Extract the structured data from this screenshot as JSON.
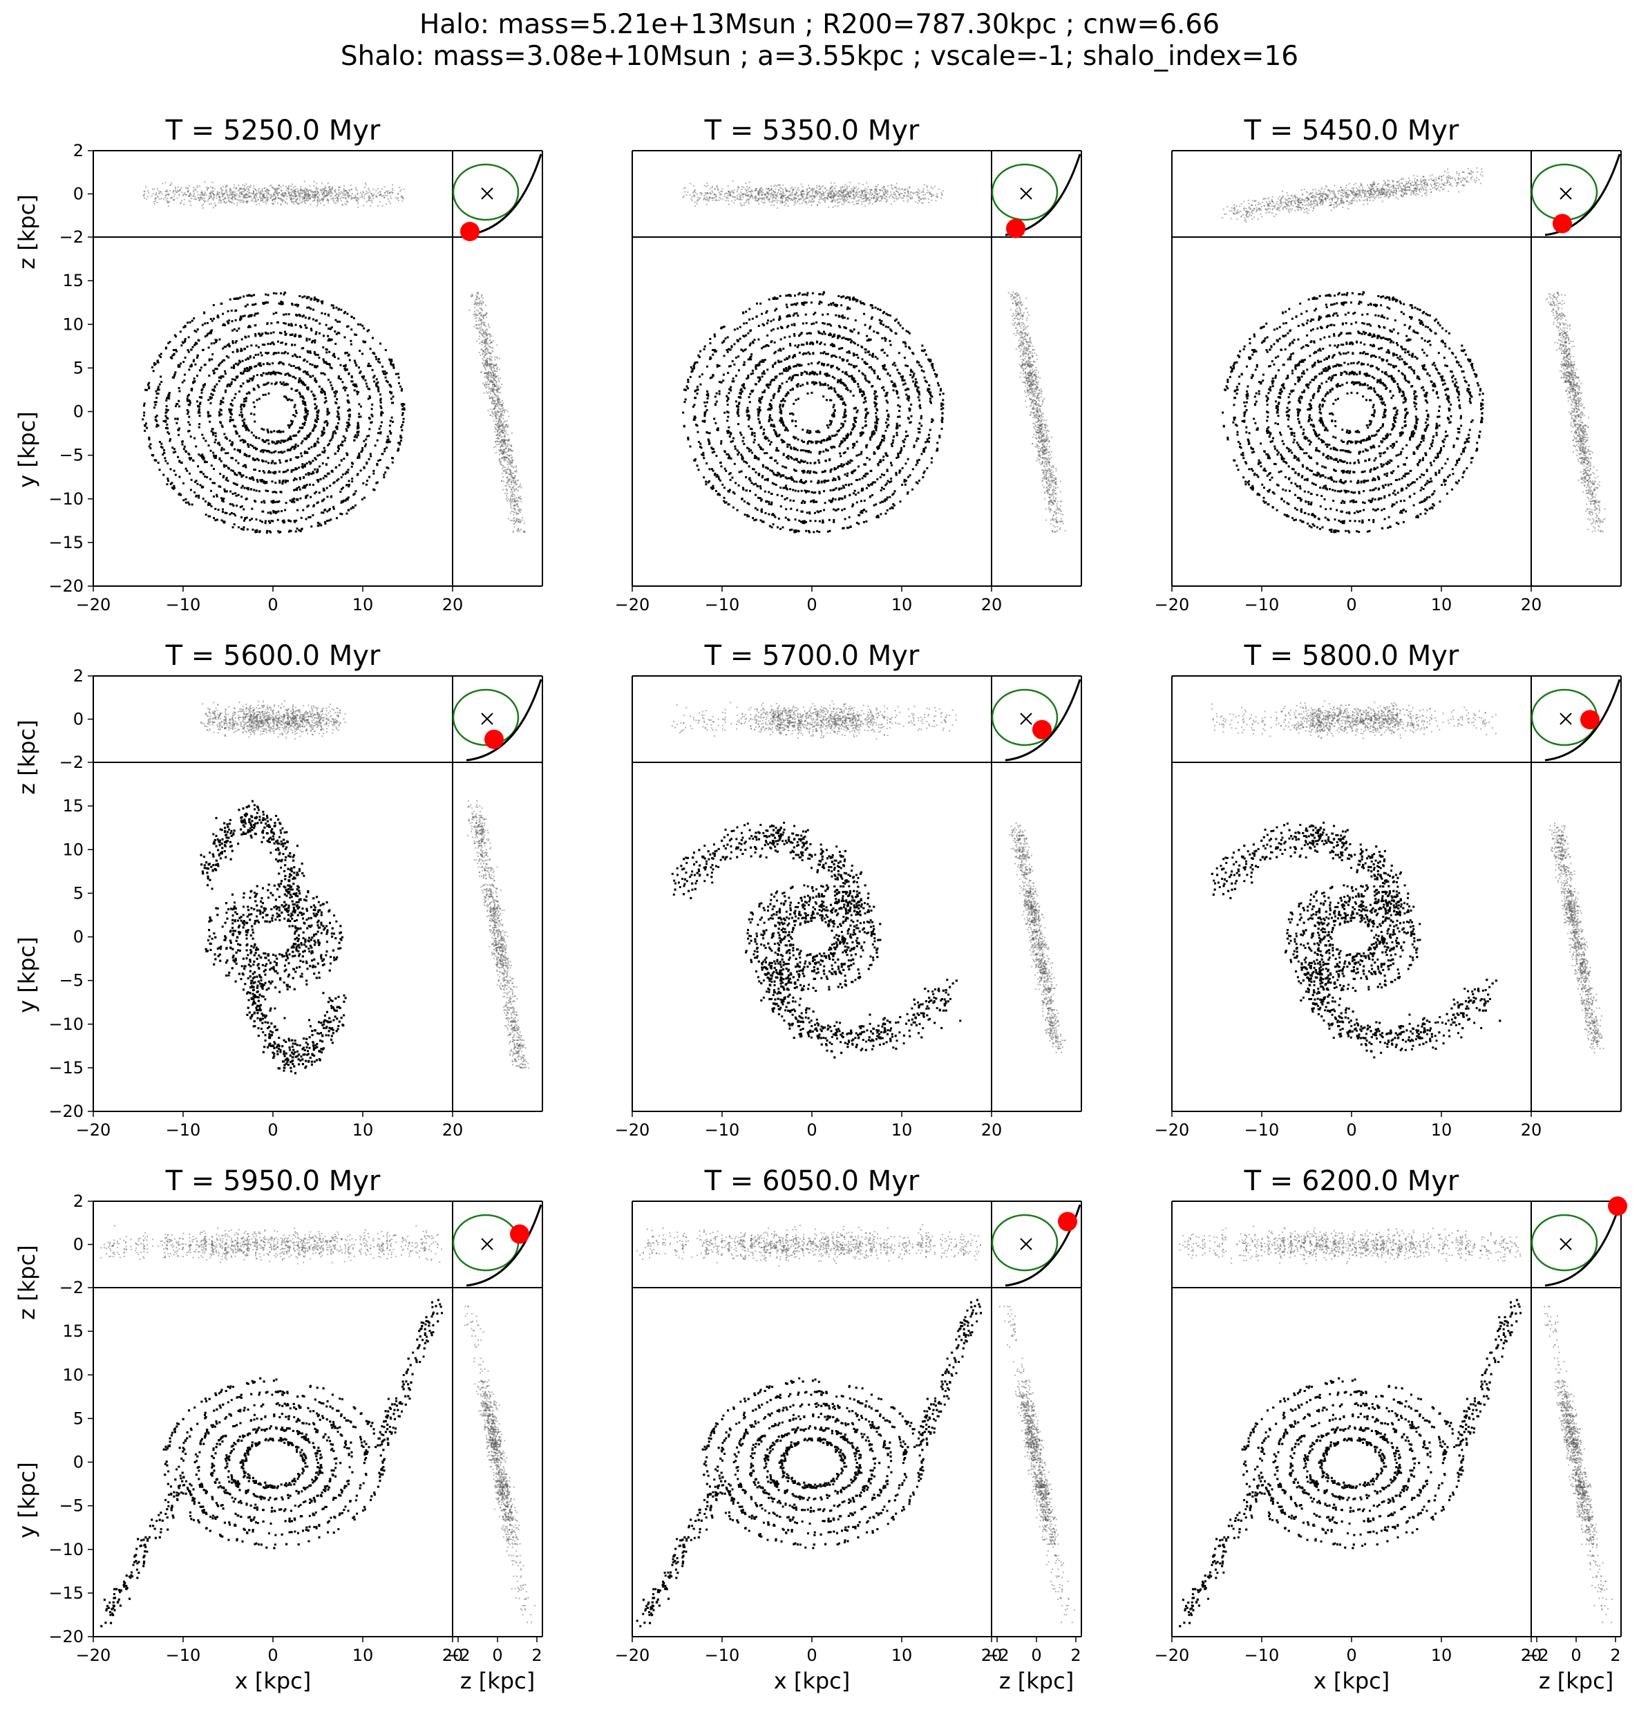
{
  "figure": {
    "suptitle_line1": "Halo:  mass=5.21e+13Msun ; R200=787.30kpc ; cnw=6.66",
    "suptitle_line2": "Shalo: mass=3.08e+10Msun ; a=3.55kpc ; vscale=-1; shalo_index=16",
    "colors": {
      "particles": "#000000",
      "side_particles": "#555555",
      "halo_circle": "#1a7a1a",
      "subhalo_marker": "#ff0000",
      "orbit": "#000000"
    }
  },
  "chart_data": {
    "type": "scatter",
    "axes": {
      "xy_xlabel": "x [kpc]",
      "xy_ylabel": "y [kpc]",
      "xz_ylabel": "z [kpc]",
      "yz_xlabel": "z [kpc]",
      "xy_xlim": [
        -20,
        30
      ],
      "xy_ylim": [
        -20,
        20
      ],
      "xz_ylim": [
        -2,
        2
      ],
      "x_ticks": [
        "−20",
        "−10",
        "0",
        "10",
        "20"
      ],
      "y_ticks": [
        "−20",
        "−15",
        "−10",
        "−5",
        "0",
        "5",
        "10",
        "15"
      ],
      "z_ticks": [
        "2",
        "0",
        "−2"
      ],
      "zside_ticks": [
        "−2",
        "0",
        "2"
      ]
    },
    "panels": [
      {
        "title": "T = 5250.0 Myr",
        "time_myr": 5250.0,
        "state": "disk",
        "orbit_phase": 0.0,
        "marker_angle_deg": -100
      },
      {
        "title": "T = 5350.0 Myr",
        "time_myr": 5350.0,
        "state": "disk",
        "orbit_phase": 0.1,
        "marker_angle_deg": -95
      },
      {
        "title": "T = 5450.0 Myr",
        "time_myr": 5450.0,
        "state": "disk-tilted",
        "orbit_phase": 0.2,
        "marker_angle_deg": -60
      },
      {
        "title": "T = 5600.0 Myr",
        "time_myr": 5600.0,
        "state": "tidal-tails-start",
        "orbit_phase": 0.35,
        "marker_angle_deg": -35
      },
      {
        "title": "T = 5700.0 Myr",
        "time_myr": 5700.0,
        "state": "tidal-tails",
        "orbit_phase": 0.48,
        "marker_angle_deg": -5
      },
      {
        "title": "T = 5800.0 Myr",
        "time_myr": 5800.0,
        "state": "tidal-tails",
        "orbit_phase": 0.6,
        "marker_angle_deg": 10
      },
      {
        "title": "T = 5950.0 Myr",
        "time_myr": 5950.0,
        "state": "ring",
        "orbit_phase": 0.72,
        "marker_angle_deg": 30
      },
      {
        "title": "T = 6050.0 Myr",
        "time_myr": 6050.0,
        "state": "ring",
        "orbit_phase": 0.85,
        "marker_angle_deg": 45
      },
      {
        "title": "T = 6200.0 Myr",
        "time_myr": 6200.0,
        "state": "ring",
        "orbit_phase": 1.0,
        "marker_angle_deg": 60
      }
    ]
  }
}
